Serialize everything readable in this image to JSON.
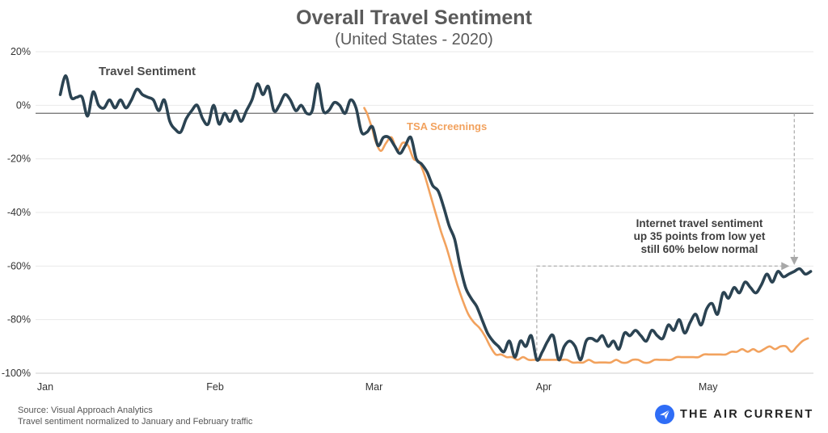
{
  "title": "Overall Travel Sentiment",
  "subtitle": "(United States - 2020)",
  "footnotes": {
    "source": "Source: Visual Approach Analytics",
    "note": "Travel sentiment normalized to January and February traffic"
  },
  "brand": {
    "name": "THE AIR CURRENT",
    "icon": "paper-plane-icon",
    "color": "#2f6df6"
  },
  "colors": {
    "travel_sentiment": "#2b4352",
    "tsa": "#f2a25e",
    "baseline": "#6b6b6b",
    "grid": "#e9e9e9",
    "annotation": "#a8a8a8"
  },
  "chart_data": {
    "type": "line",
    "title": "Overall Travel Sentiment",
    "subtitle": "(United States - 2020)",
    "x_domain": [
      0,
      142
    ],
    "x_ticks": [
      {
        "label": "Jan",
        "day": 0
      },
      {
        "label": "Feb",
        "day": 31
      },
      {
        "label": "Mar",
        "day": 60
      },
      {
        "label": "Apr",
        "day": 91
      },
      {
        "label": "May",
        "day": 121
      }
    ],
    "ylim": [
      -100,
      20
    ],
    "y_ticks": [
      {
        "label": "20%",
        "value": 20
      },
      {
        "label": "0%",
        "value": 0
      },
      {
        "label": "-20%",
        "value": -20
      },
      {
        "label": "-40%",
        "value": -40
      },
      {
        "label": "-60%",
        "value": -60
      },
      {
        "label": "-80%",
        "value": -80
      },
      {
        "label": "-100%",
        "value": -100
      }
    ],
    "grid": true,
    "reference_line": {
      "value": -3
    },
    "series": [
      {
        "name": "Travel Sentiment",
        "points": [
          [
            4.5,
            4
          ],
          [
            5.5,
            11
          ],
          [
            6.5,
            3
          ],
          [
            7.5,
            3
          ],
          [
            8.5,
            3
          ],
          [
            9.5,
            -4
          ],
          [
            10.5,
            5
          ],
          [
            11.5,
            0
          ],
          [
            12.5,
            -1
          ],
          [
            13.5,
            2
          ],
          [
            14.5,
            -1
          ],
          [
            15.5,
            2
          ],
          [
            16.5,
            -1
          ],
          [
            17.5,
            2
          ],
          [
            18.5,
            6
          ],
          [
            19.5,
            4
          ],
          [
            20.5,
            3
          ],
          [
            21.5,
            2
          ],
          [
            22.5,
            -2
          ],
          [
            23.5,
            2
          ],
          [
            24.5,
            -6
          ],
          [
            25.5,
            -9
          ],
          [
            26.5,
            -10
          ],
          [
            27.5,
            -5
          ],
          [
            28.5,
            -2
          ],
          [
            29.5,
            0
          ],
          [
            30.5,
            -5
          ],
          [
            31.5,
            -7
          ],
          [
            32.5,
            0
          ],
          [
            33.5,
            -7
          ],
          [
            34.5,
            -3
          ],
          [
            35.5,
            -6
          ],
          [
            36.5,
            -2
          ],
          [
            37.5,
            -6
          ],
          [
            38.5,
            -2
          ],
          [
            39.5,
            2
          ],
          [
            40.5,
            8
          ],
          [
            41.5,
            4
          ],
          [
            42.5,
            7
          ],
          [
            43.5,
            -2
          ],
          [
            44.5,
            0
          ],
          [
            45.5,
            4
          ],
          [
            46.5,
            2
          ],
          [
            47.5,
            -2
          ],
          [
            48.5,
            0
          ],
          [
            49.5,
            -3
          ],
          [
            50.5,
            -2
          ],
          [
            51.5,
            8
          ],
          [
            52.5,
            -2
          ],
          [
            53.5,
            -2
          ],
          [
            54.5,
            1
          ],
          [
            55.5,
            0
          ],
          [
            56.5,
            -3
          ],
          [
            57.5,
            2
          ],
          [
            58.5,
            -1
          ],
          [
            59.5,
            -10
          ],
          [
            60.5,
            -10
          ],
          [
            61.5,
            -8
          ],
          [
            62.5,
            -15
          ],
          [
            63.5,
            -12
          ],
          [
            64.5,
            -12
          ],
          [
            65.5,
            -15
          ],
          [
            66.5,
            -18
          ],
          [
            67.5,
            -15
          ],
          [
            68.5,
            -12
          ],
          [
            69.5,
            -20
          ],
          [
            70.5,
            -22
          ],
          [
            71.5,
            -25
          ],
          [
            72.5,
            -30
          ],
          [
            73.5,
            -32
          ],
          [
            74.5,
            -38
          ],
          [
            75.5,
            -45
          ],
          [
            76.5,
            -50
          ],
          [
            77.5,
            -60
          ],
          [
            78.5,
            -68
          ],
          [
            79.5,
            -72
          ],
          [
            80.5,
            -75
          ],
          [
            81.5,
            -80
          ],
          [
            82.5,
            -85
          ],
          [
            83.5,
            -88
          ],
          [
            84.5,
            -90
          ],
          [
            85.5,
            -92
          ],
          [
            86.5,
            -88
          ],
          [
            87.5,
            -94
          ],
          [
            88.5,
            -88
          ],
          [
            89.5,
            -90
          ],
          [
            90.5,
            -86
          ],
          [
            91.5,
            -95
          ],
          [
            92.5,
            -92
          ],
          [
            93.5,
            -88
          ],
          [
            94.5,
            -86
          ],
          [
            95.5,
            -95
          ],
          [
            96.5,
            -90
          ],
          [
            97.5,
            -88
          ],
          [
            98.5,
            -90
          ],
          [
            99.5,
            -95
          ],
          [
            100.5,
            -88
          ],
          [
            101.5,
            -87
          ],
          [
            102.5,
            -88
          ],
          [
            103.5,
            -86
          ],
          [
            104.5,
            -90
          ],
          [
            105.5,
            -88
          ],
          [
            106.5,
            -91
          ],
          [
            107.5,
            -85
          ],
          [
            108.5,
            -86
          ],
          [
            109.5,
            -84
          ],
          [
            110.5,
            -86
          ],
          [
            111.5,
            -88
          ],
          [
            112.5,
            -84
          ],
          [
            113.5,
            -86
          ],
          [
            114.5,
            -87
          ],
          [
            115.5,
            -82
          ],
          [
            116.5,
            -84
          ],
          [
            117.5,
            -80
          ],
          [
            118.5,
            -85
          ],
          [
            119.5,
            -81
          ],
          [
            120.5,
            -78
          ],
          [
            121.5,
            -82
          ],
          [
            122.5,
            -76
          ],
          [
            123.5,
            -74
          ],
          [
            124.5,
            -78
          ],
          [
            125.5,
            -70
          ],
          [
            126.5,
            -72
          ],
          [
            127.5,
            -68
          ],
          [
            128.5,
            -70
          ],
          [
            129.5,
            -66
          ],
          [
            130.5,
            -68
          ],
          [
            131.5,
            -70
          ],
          [
            132.5,
            -67
          ],
          [
            133.5,
            -63
          ],
          [
            134.5,
            -66
          ],
          [
            135.5,
            -62
          ],
          [
            136.5,
            -64
          ],
          [
            137.5,
            -63
          ],
          [
            138.5,
            -62
          ],
          [
            139.5,
            -61
          ],
          [
            140.5,
            -63
          ],
          [
            141.5,
            -62
          ]
        ]
      },
      {
        "name": "TSA Screenings",
        "points": [
          [
            60,
            -1
          ],
          [
            60.5,
            -3
          ],
          [
            61,
            -6
          ],
          [
            61.5,
            -9
          ],
          [
            62,
            -13
          ],
          [
            63,
            -17
          ],
          [
            64,
            -14
          ],
          [
            65,
            -12
          ],
          [
            66,
            -17
          ],
          [
            67,
            -14
          ],
          [
            68,
            -15
          ],
          [
            69,
            -20
          ],
          [
            70,
            -21
          ],
          [
            71,
            -26
          ],
          [
            72,
            -33
          ],
          [
            73,
            -40
          ],
          [
            74,
            -47
          ],
          [
            75,
            -53
          ],
          [
            76,
            -60
          ],
          [
            77,
            -67
          ],
          [
            78,
            -73
          ],
          [
            79,
            -78
          ],
          [
            80,
            -81
          ],
          [
            81,
            -83
          ],
          [
            82,
            -86
          ],
          [
            83,
            -90
          ],
          [
            84,
            -93
          ],
          [
            85,
            -93
          ],
          [
            86,
            -94
          ],
          [
            87,
            -94
          ],
          [
            88,
            -95
          ],
          [
            89,
            -94
          ],
          [
            90,
            -95
          ],
          [
            91,
            -95
          ],
          [
            92,
            -95
          ],
          [
            93,
            -95
          ],
          [
            94,
            -95
          ],
          [
            95,
            -95
          ],
          [
            96,
            -95
          ],
          [
            97,
            -95
          ],
          [
            98,
            -96
          ],
          [
            99,
            -96
          ],
          [
            100,
            -96
          ],
          [
            101,
            -95
          ],
          [
            102,
            -96
          ],
          [
            103,
            -96
          ],
          [
            104,
            -96
          ],
          [
            105,
            -96
          ],
          [
            106,
            -95
          ],
          [
            107,
            -96
          ],
          [
            108,
            -96
          ],
          [
            109,
            -95
          ],
          [
            110,
            -95
          ],
          [
            111,
            -96
          ],
          [
            112,
            -96
          ],
          [
            113,
            -95
          ],
          [
            114,
            -95
          ],
          [
            115,
            -95
          ],
          [
            116,
            -95
          ],
          [
            117,
            -94
          ],
          [
            118,
            -94
          ],
          [
            119,
            -94
          ],
          [
            120,
            -94
          ],
          [
            121,
            -94
          ],
          [
            122,
            -93
          ],
          [
            123,
            -93
          ],
          [
            124,
            -93
          ],
          [
            125,
            -93
          ],
          [
            126,
            -93
          ],
          [
            127,
            -92
          ],
          [
            128,
            -92
          ],
          [
            129,
            -91
          ],
          [
            130,
            -92
          ],
          [
            131,
            -91
          ],
          [
            132,
            -92
          ],
          [
            133,
            -91
          ],
          [
            134,
            -90
          ],
          [
            135,
            -91
          ],
          [
            136,
            -90
          ],
          [
            137,
            -90
          ],
          [
            138,
            -92
          ],
          [
            139,
            -90
          ],
          [
            140,
            -88
          ],
          [
            141,
            -87
          ]
        ]
      }
    ],
    "annotations": [
      {
        "id": "travel_label",
        "text": "Travel Sentiment"
      },
      {
        "id": "tsa_label",
        "text": "TSA Screenings"
      },
      {
        "id": "callout",
        "lines": [
          "Internet travel sentiment",
          "up 35 points from low yet",
          "still 60% below normal"
        ]
      }
    ]
  }
}
